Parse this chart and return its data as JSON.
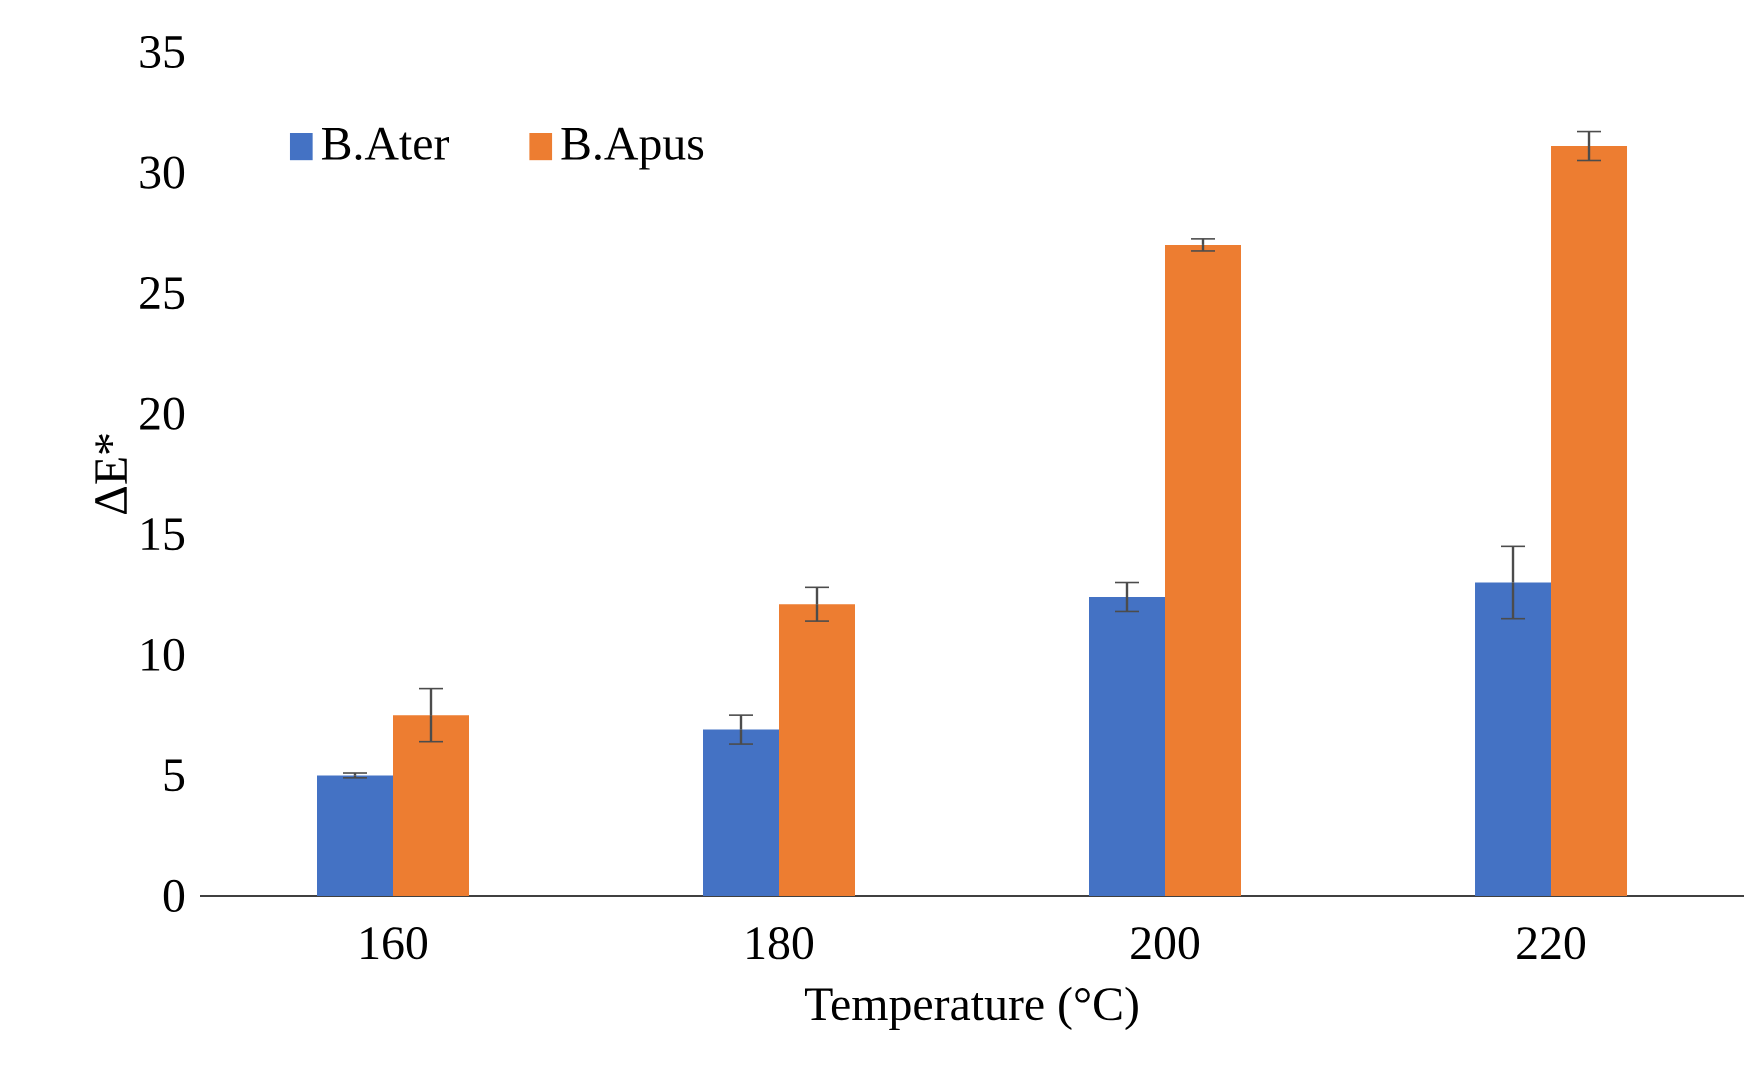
{
  "chart_data": {
    "type": "bar",
    "xlabel": "Temperature (°C)",
    "ylabel": "ΔE*",
    "categories": [
      "160",
      "180",
      "200",
      "220"
    ],
    "series": [
      {
        "name": "B.Ater",
        "color": "#4472c4",
        "values": [
          5.0,
          6.9,
          12.4,
          13.0
        ],
        "errors": [
          0.1,
          0.6,
          0.6,
          1.5
        ]
      },
      {
        "name": "B.Apus",
        "color": "#ed7d31",
        "values": [
          7.5,
          12.1,
          27.0,
          31.1
        ],
        "errors": [
          1.1,
          0.7,
          0.25,
          0.6
        ]
      }
    ],
    "ylim": [
      0,
      35
    ],
    "yticks": [
      0,
      5,
      10,
      15,
      20,
      25,
      30,
      35
    ],
    "legend": "top left"
  }
}
